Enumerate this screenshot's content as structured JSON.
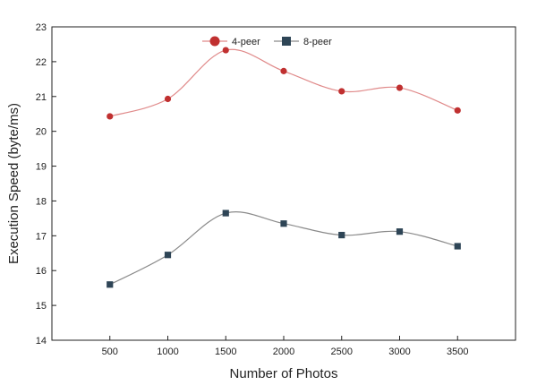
{
  "chart_data": {
    "type": "line",
    "title": "",
    "xlabel": "Number of Photos",
    "ylabel": "Execution Speed  (byte/ms)",
    "x": [
      500,
      1000,
      1500,
      2000,
      2500,
      3000,
      3500
    ],
    "xlim": [
      0,
      4000
    ],
    "ylim": [
      14,
      23
    ],
    "yticks": [
      14,
      15,
      16,
      17,
      18,
      19,
      20,
      21,
      22,
      23
    ],
    "xticks": [
      500,
      1000,
      1500,
      2000,
      2500,
      3000,
      3500
    ],
    "grid": false,
    "legend_position": "top-center",
    "series": [
      {
        "name": "4-peer",
        "marker": "circle",
        "color": "#c03030",
        "line_color": "#e08a8a",
        "values": [
          20.43,
          20.93,
          22.33,
          21.73,
          21.15,
          21.25,
          20.6
        ]
      },
      {
        "name": "8-peer",
        "marker": "square",
        "color": "#2e4556",
        "line_color": "#8a8a8a",
        "values": [
          15.6,
          16.45,
          17.65,
          17.35,
          17.02,
          17.12,
          16.7
        ]
      }
    ]
  }
}
